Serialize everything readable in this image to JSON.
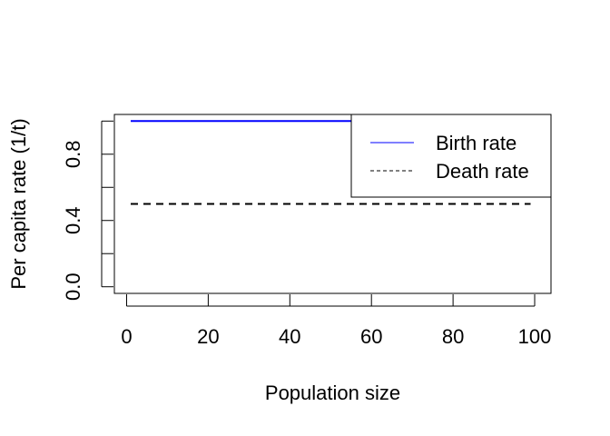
{
  "chart_data": {
    "type": "line",
    "title": "",
    "xlabel": "Population size",
    "ylabel": "Per capita rate (1/t)",
    "xlim": [
      -3,
      104
    ],
    "ylim": [
      -0.04,
      1.04
    ],
    "x_ticks": [
      0,
      20,
      40,
      60,
      80,
      100
    ],
    "x_tick_labels": [
      "0",
      "20",
      "40",
      "60",
      "80",
      "100"
    ],
    "y_ticks": [
      0.0,
      0.2,
      0.4,
      0.6,
      0.8,
      1.0
    ],
    "y_tick_labels": [
      "0.0",
      "",
      "0.4",
      "",
      "0.8",
      ""
    ],
    "grid": false,
    "legend_position": "top-right",
    "series": [
      {
        "name": "Birth rate",
        "color": "#0000ff",
        "line_style": "solid",
        "x": [
          1,
          99
        ],
        "y": [
          1.0,
          1.0
        ]
      },
      {
        "name": "Death rate",
        "color": "#000000",
        "line_style": "dashed",
        "x": [
          1,
          99
        ],
        "y": [
          0.5,
          0.5
        ]
      }
    ]
  }
}
